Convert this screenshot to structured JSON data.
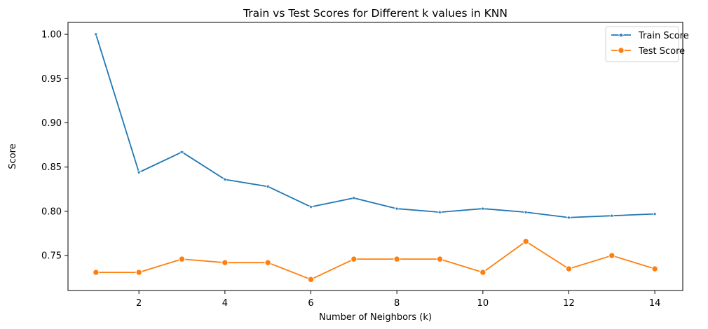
{
  "chart_data": {
    "type": "line",
    "title": "Train vs Test Scores for Different k values in KNN",
    "xlabel": "Number of Neighbors (k)",
    "ylabel": "Score",
    "x": [
      1,
      2,
      3,
      4,
      5,
      6,
      7,
      8,
      9,
      10,
      11,
      12,
      13,
      14
    ],
    "xlim": [
      0.35,
      14.65
    ],
    "ylim": [
      0.7105,
      1.0135
    ],
    "x_ticks": [
      2,
      4,
      6,
      8,
      10,
      12,
      14
    ],
    "y_ticks": [
      0.75,
      0.8,
      0.85,
      0.9,
      0.95,
      1.0
    ],
    "x_tick_labels": [
      "2",
      "4",
      "6",
      "8",
      "10",
      "12",
      "14"
    ],
    "y_tick_labels": [
      "0.75",
      "0.80",
      "0.85",
      "0.90",
      "0.95",
      "1.00"
    ],
    "grid": false,
    "legend_position": "top-right",
    "series": [
      {
        "name": "Train Score",
        "marker": "star",
        "color": "#1f77b4",
        "values": [
          1.0,
          0.844,
          0.867,
          0.836,
          0.828,
          0.805,
          0.815,
          0.803,
          0.799,
          0.803,
          0.799,
          0.793,
          0.795,
          0.797
        ]
      },
      {
        "name": "Test Score",
        "marker": "circle",
        "color": "#ff7f0e",
        "values": [
          0.731,
          0.731,
          0.746,
          0.742,
          0.742,
          0.723,
          0.746,
          0.746,
          0.746,
          0.731,
          0.766,
          0.735,
          0.75,
          0.735
        ]
      }
    ]
  }
}
